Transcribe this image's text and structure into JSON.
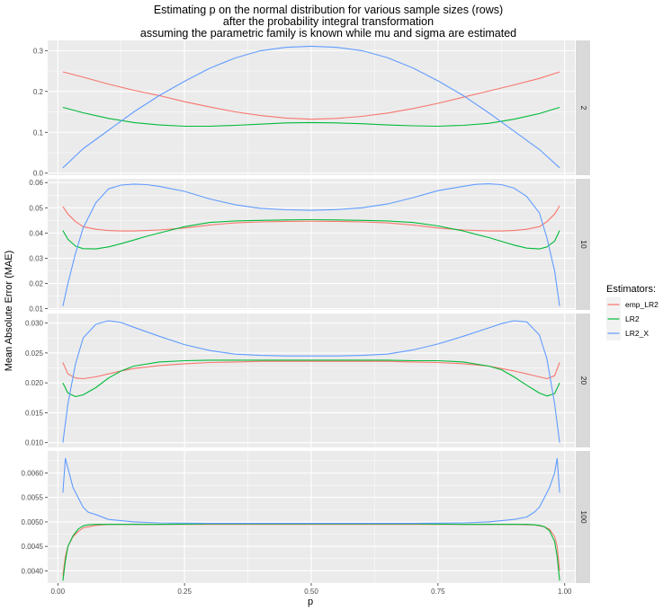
{
  "chart_data": {
    "type": "line",
    "title_lines": [
      "Estimating p on the normal distribution for various sample sizes (rows)",
      "after the probability integral transformation",
      "assuming the parametric family is known while mu and sigma are estimated"
    ],
    "xlabel": "p",
    "ylabel": "Mean Absolute Error (MAE)",
    "x_ticks": [
      "0.00",
      "0.25",
      "0.50",
      "0.75",
      "1.00"
    ],
    "x_tick_values": [
      0,
      0.25,
      0.5,
      0.75,
      1.0
    ],
    "xlim": [
      -0.02,
      1.02
    ],
    "legend": {
      "title": "Estimators:",
      "entries": [
        {
          "label": "emp_LR2",
          "color": "#F8766D"
        },
        {
          "label": "LR2",
          "color": "#00BA38"
        },
        {
          "label": "LR2_X",
          "color": "#619CFF"
        }
      ]
    },
    "colors": {
      "emp_LR2": "#F8766D",
      "LR2": "#00BA38",
      "LR2_X": "#619CFF"
    },
    "panels": [
      {
        "strip": "2",
        "ylim": [
          -0.005,
          0.325
        ],
        "y_ticks": [
          "0.0",
          "0.1",
          "0.2",
          "0.3"
        ],
        "y_tick_values": [
          0.0,
          0.1,
          0.2,
          0.3
        ],
        "x": [
          0.01,
          0.05,
          0.1,
          0.15,
          0.2,
          0.25,
          0.3,
          0.35,
          0.4,
          0.45,
          0.5,
          0.55,
          0.6,
          0.65,
          0.7,
          0.75,
          0.8,
          0.85,
          0.9,
          0.95,
          0.99
        ],
        "series": [
          {
            "name": "emp_LR2",
            "values": [
              0.248,
              0.235,
              0.218,
              0.203,
              0.19,
              0.175,
              0.162,
              0.15,
              0.141,
              0.135,
              0.132,
              0.134,
              0.139,
              0.147,
              0.158,
              0.171,
              0.186,
              0.201,
              0.216,
              0.232,
              0.248
            ]
          },
          {
            "name": "LR2",
            "values": [
              0.161,
              0.148,
              0.134,
              0.124,
              0.118,
              0.115,
              0.115,
              0.117,
              0.12,
              0.123,
              0.124,
              0.123,
              0.121,
              0.118,
              0.116,
              0.115,
              0.117,
              0.122,
              0.132,
              0.146,
              0.161
            ]
          },
          {
            "name": "LR2_X",
            "values": [
              0.013,
              0.06,
              0.105,
              0.15,
              0.19,
              0.225,
              0.257,
              0.282,
              0.3,
              0.308,
              0.311,
              0.308,
              0.3,
              0.283,
              0.258,
              0.226,
              0.19,
              0.148,
              0.103,
              0.058,
              0.013
            ]
          }
        ]
      },
      {
        "strip": "10",
        "ylim": [
          0.0095,
          0.0615
        ],
        "y_ticks": [
          "0.01",
          "0.02",
          "0.03",
          "0.04",
          "0.05",
          "0.06"
        ],
        "y_tick_values": [
          0.01,
          0.02,
          0.03,
          0.04,
          0.05,
          0.06
        ],
        "x": [
          0.01,
          0.02,
          0.035,
          0.05,
          0.075,
          0.1,
          0.125,
          0.15,
          0.175,
          0.2,
          0.25,
          0.3,
          0.35,
          0.4,
          0.45,
          0.5,
          0.55,
          0.6,
          0.65,
          0.7,
          0.75,
          0.8,
          0.825,
          0.85,
          0.875,
          0.9,
          0.925,
          0.95,
          0.965,
          0.98,
          0.99
        ],
        "series": [
          {
            "name": "emp_LR2",
            "values": [
              0.0505,
              0.0475,
              0.0445,
              0.0425,
              0.0415,
              0.041,
              0.0408,
              0.0408,
              0.041,
              0.0412,
              0.042,
              0.0432,
              0.044,
              0.0444,
              0.0446,
              0.0447,
              0.0446,
              0.0444,
              0.044,
              0.0432,
              0.042,
              0.0412,
              0.041,
              0.0408,
              0.0408,
              0.041,
              0.0415,
              0.0425,
              0.0445,
              0.0475,
              0.0508
            ]
          },
          {
            "name": "LR2",
            "values": [
              0.041,
              0.0375,
              0.0348,
              0.0338,
              0.0337,
              0.0345,
              0.0358,
              0.0372,
              0.0387,
              0.04,
              0.0425,
              0.0442,
              0.0448,
              0.045,
              0.0452,
              0.0453,
              0.0452,
              0.045,
              0.0448,
              0.0442,
              0.0428,
              0.0408,
              0.0395,
              0.0382,
              0.0367,
              0.0352,
              0.034,
              0.0337,
              0.0345,
              0.0368,
              0.041
            ]
          },
          {
            "name": "LR2_X",
            "values": [
              0.011,
              0.02,
              0.032,
              0.042,
              0.052,
              0.0575,
              0.059,
              0.0594,
              0.0592,
              0.0585,
              0.0565,
              0.0535,
              0.0512,
              0.0498,
              0.0492,
              0.049,
              0.0493,
              0.05,
              0.0515,
              0.054,
              0.0568,
              0.0585,
              0.0593,
              0.0595,
              0.0592,
              0.0578,
              0.0545,
              0.048,
              0.038,
              0.025,
              0.011
            ]
          }
        ]
      },
      {
        "strip": "20",
        "ylim": [
          0.0092,
          0.0316
        ],
        "y_ticks": [
          "0.010",
          "0.015",
          "0.020",
          "0.025",
          "0.030"
        ],
        "y_tick_values": [
          0.01,
          0.015,
          0.02,
          0.025,
          0.03
        ],
        "x": [
          0.01,
          0.02,
          0.035,
          0.05,
          0.075,
          0.1,
          0.125,
          0.15,
          0.2,
          0.25,
          0.3,
          0.35,
          0.4,
          0.45,
          0.5,
          0.55,
          0.6,
          0.65,
          0.7,
          0.75,
          0.8,
          0.85,
          0.875,
          0.9,
          0.925,
          0.95,
          0.965,
          0.98,
          0.99
        ],
        "series": [
          {
            "name": "emp_LR2",
            "values": [
              0.0234,
              0.0215,
              0.0208,
              0.0207,
              0.021,
              0.0215,
              0.022,
              0.0224,
              0.0229,
              0.0232,
              0.0234,
              0.0235,
              0.0236,
              0.0236,
              0.0236,
              0.0236,
              0.0236,
              0.0236,
              0.0235,
              0.0234,
              0.0232,
              0.0228,
              0.0224,
              0.022,
              0.0215,
              0.021,
              0.0207,
              0.0212,
              0.0234
            ]
          },
          {
            "name": "LR2",
            "values": [
              0.02,
              0.0183,
              0.0177,
              0.018,
              0.0192,
              0.0208,
              0.022,
              0.0228,
              0.0235,
              0.0237,
              0.0238,
              0.0238,
              0.0238,
              0.0238,
              0.0238,
              0.0238,
              0.0238,
              0.0238,
              0.0237,
              0.0237,
              0.0235,
              0.0228,
              0.0222,
              0.021,
              0.0196,
              0.0183,
              0.0178,
              0.0182,
              0.02
            ]
          },
          {
            "name": "LR2_X",
            "values": [
              0.01,
              0.0165,
              0.0232,
              0.0275,
              0.0298,
              0.0304,
              0.0301,
              0.0293,
              0.0278,
              0.0264,
              0.0254,
              0.0248,
              0.0246,
              0.0245,
              0.0245,
              0.0245,
              0.0246,
              0.0248,
              0.0255,
              0.0265,
              0.0278,
              0.0292,
              0.0299,
              0.0304,
              0.0302,
              0.028,
              0.024,
              0.0165,
              0.01
            ]
          }
        ]
      },
      {
        "strip": "100",
        "ylim": [
          0.00375,
          0.00645
        ],
        "y_ticks": [
          "0.0040",
          "0.0045",
          "0.0050",
          "0.0055",
          "0.0060"
        ],
        "y_tick_values": [
          0.004,
          0.0045,
          0.005,
          0.0055,
          0.006
        ],
        "x": [
          0.01,
          0.015,
          0.02,
          0.03,
          0.04,
          0.05,
          0.06,
          0.075,
          0.1,
          0.15,
          0.2,
          0.3,
          0.4,
          0.5,
          0.6,
          0.7,
          0.8,
          0.85,
          0.9,
          0.925,
          0.94,
          0.95,
          0.96,
          0.97,
          0.98,
          0.985,
          0.99
        ],
        "series": [
          {
            "name": "emp_LR2",
            "values": [
              0.0039,
              0.0043,
              0.0045,
              0.0047,
              0.0048,
              0.00488,
              0.0049,
              0.00493,
              0.00495,
              0.00495,
              0.00495,
              0.00495,
              0.00495,
              0.00495,
              0.00495,
              0.00495,
              0.00495,
              0.00495,
              0.00495,
              0.00494,
              0.00494,
              0.00492,
              0.0049,
              0.00485,
              0.0047,
              0.0045,
              0.004
            ]
          },
          {
            "name": "LR2",
            "values": [
              0.0038,
              0.0042,
              0.0045,
              0.00472,
              0.00485,
              0.00492,
              0.00494,
              0.00495,
              0.00495,
              0.00495,
              0.00495,
              0.00496,
              0.00496,
              0.00496,
              0.00496,
              0.00496,
              0.00495,
              0.00495,
              0.00495,
              0.00495,
              0.00494,
              0.00493,
              0.0049,
              0.00482,
              0.0046,
              0.0043,
              0.0038
            ]
          },
          {
            "name": "LR2_X",
            "values": [
              0.0056,
              0.0063,
              0.0061,
              0.0057,
              0.0055,
              0.0053,
              0.0052,
              0.00515,
              0.00505,
              0.005,
              0.00498,
              0.00497,
              0.00497,
              0.00497,
              0.00497,
              0.00497,
              0.00498,
              0.005,
              0.00505,
              0.0051,
              0.0052,
              0.0053,
              0.0055,
              0.0057,
              0.006,
              0.0063,
              0.0056
            ]
          }
        ]
      }
    ]
  }
}
